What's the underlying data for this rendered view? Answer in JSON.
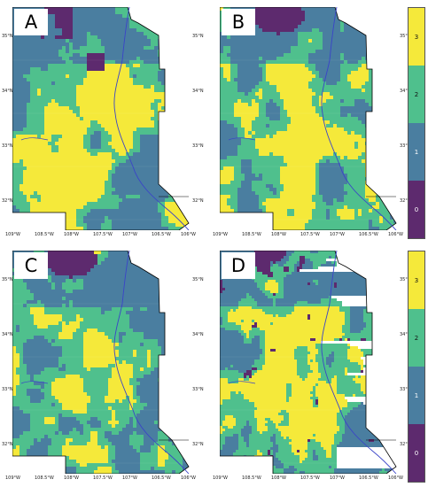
{
  "panels": [
    {
      "label": "A",
      "variant": 0
    },
    {
      "label": "B",
      "variant": 1
    },
    {
      "label": "C",
      "variant": 2
    },
    {
      "label": "D",
      "variant": 3
    }
  ],
  "longitude_ticks": [
    "109°W",
    "108.5°W",
    "108°W",
    "107.5°W",
    "107°W",
    "106.5°W",
    "106°W"
  ],
  "latitude_ticks": [
    "35°N",
    "34°N",
    "33°N",
    "32°N"
  ],
  "colorbar": {
    "classes": [
      {
        "value": "3",
        "color": "#f5e93a"
      },
      {
        "value": "2",
        "color": "#4fc08d"
      },
      {
        "value": "1",
        "color": "#4a7ea0"
      },
      {
        "value": "0",
        "color": "#5d2a6e"
      }
    ]
  }
}
